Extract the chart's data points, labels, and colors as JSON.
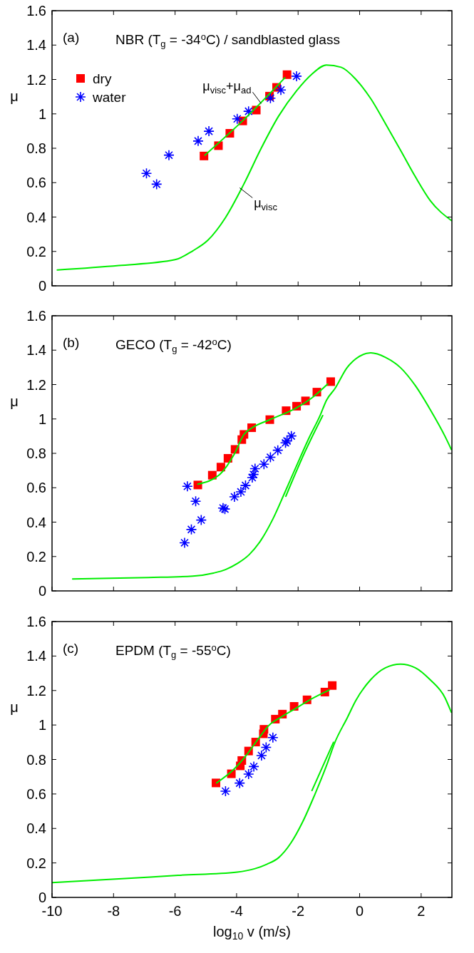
{
  "chart_data": [
    {
      "type": "scatter",
      "title": "NBR (T$_{g}$ = -34$^{o}$C) / sandblasted glass",
      "ylabel": "μ",
      "xlim": [
        -10,
        3
      ],
      "xticks": [
        -10,
        -8,
        -6,
        -4,
        -2,
        0,
        2
      ],
      "ylim": [
        0,
        1.6
      ],
      "yticks": [
        0,
        0.2,
        0.4,
        0.6,
        0.8,
        1,
        1.2,
        1.4,
        1.6
      ],
      "tick_labels": "y",
      "legend": "top left",
      "grid": false,
      "annotations": [
        "(a)",
        {
          "text": "μ$_{visc}$+μ$_{ad}$",
          "x": -3.2,
          "y": 1.06
        },
        {
          "text": "μ$_{visc}$",
          "x": -3.9,
          "y": 0.57
        }
      ],
      "series": [
        {
          "name": "dry",
          "color": "#ff0000",
          "marker": "square",
          "x": [
            -5.06,
            -4.59,
            -4.22,
            -3.8,
            -3.36,
            -2.93,
            -2.7,
            -2.36
          ],
          "values": [
            0.755,
            0.815,
            0.887,
            0.959,
            1.022,
            1.103,
            1.154,
            1.228
          ]
        },
        {
          "name": "water",
          "color": "#0000ff",
          "marker": "cross",
          "x": [
            -6.93,
            -6.6,
            -6.2,
            -5.25,
            -4.9,
            -3.98,
            -3.61,
            -2.9,
            -2.56,
            -2.05
          ],
          "values": [
            0.654,
            0.591,
            0.76,
            0.842,
            0.899,
            0.971,
            1.015,
            1.091,
            1.139,
            1.219
          ]
        },
        {
          "type": "line",
          "color": "#00ee00",
          "x": [
            -5.03,
            -3.8,
            -2.43
          ],
          "values": [
            0.76,
            0.96,
            1.21
          ]
        },
        {
          "type": "line",
          "color": "#00ee00",
          "x": [
            -9.83,
            -7.83,
            -6,
            -5.42,
            -4.94,
            -4.36,
            -3.78,
            -3.2,
            -2.63,
            -2.05,
            -1.57,
            -1.08,
            -0.6,
            -0.12,
            0.36,
            0.84,
            1.33,
            1.81,
            2.29,
            2.98
          ],
          "values": [
            0.092,
            0.118,
            0.152,
            0.204,
            0.264,
            0.397,
            0.586,
            0.8,
            0.988,
            1.134,
            1.228,
            1.284,
            1.271,
            1.2,
            1.089,
            0.943,
            0.789,
            0.635,
            0.497,
            0.38
          ]
        }
      ]
    },
    {
      "type": "scatter",
      "title": "GECO (T$_{g}$ = -42$^{o}$C)",
      "ylabel": "μ",
      "xlim": [
        -10,
        3
      ],
      "xticks": [
        -10,
        -8,
        -6,
        -4,
        -2,
        0,
        2
      ],
      "ylim": [
        0,
        1.6
      ],
      "yticks": [
        0,
        0.2,
        0.4,
        0.6,
        0.8,
        1,
        1.2,
        1.4,
        1.6
      ],
      "tick_labels": "y",
      "grid": false,
      "annotations": [
        "(b)"
      ],
      "series": [
        {
          "color": "#ff0000",
          "marker": "square",
          "x": [
            -5.26,
            -4.79,
            -4.51,
            -4.28,
            -4.05,
            -3.83,
            -3.76,
            -3.51,
            -2.92,
            -2.39,
            -2.05,
            -1.76,
            -1.39,
            -0.94
          ],
          "values": [
            0.616,
            0.673,
            0.72,
            0.771,
            0.823,
            0.88,
            0.91,
            0.949,
            0.996,
            1.048,
            1.074,
            1.105,
            1.156,
            1.217
          ]
        },
        {
          "color": "#0000ff",
          "marker": "cross",
          "x": [
            -5.69,
            -5.6,
            -5.47,
            -5.33,
            -5.15,
            -4.44,
            -4.38,
            -4.07,
            -3.86,
            -3.71,
            -3.49,
            -3.45,
            -3.4,
            -3.11,
            -2.9,
            -2.66,
            -2.41,
            -2.36,
            -2.22
          ],
          "values": [
            0.28,
            0.608,
            0.357,
            0.521,
            0.412,
            0.482,
            0.476,
            0.547,
            0.576,
            0.613,
            0.659,
            0.677,
            0.711,
            0.737,
            0.777,
            0.818,
            0.861,
            0.872,
            0.901
          ]
        },
        {
          "type": "line",
          "color": "#00ee00",
          "x": [
            -5.26,
            -4.55,
            -4.07,
            -3.76,
            -3.49,
            -2.92,
            -2.05,
            -1.47,
            -1.04
          ],
          "values": [
            0.621,
            0.677,
            0.797,
            0.91,
            0.949,
            0.996,
            1.065,
            1.134,
            1.203
          ]
        },
        {
          "type": "line",
          "color": "#00ee00",
          "x": [
            -9.33,
            -6.87,
            -5.42,
            -4.75,
            -4.36,
            -3.98,
            -3.59,
            -3.2,
            -2.82,
            -2.43,
            -2.05,
            -1.66,
            -1.28,
            -1.08,
            -0.8,
            -0.41,
            -0.12,
            0.36,
            0.84,
            1.33,
            1.81,
            2.29,
            2.77,
            2.98
          ],
          "values": [
            0.069,
            0.078,
            0.086,
            0.104,
            0.124,
            0.159,
            0.211,
            0.297,
            0.418,
            0.573,
            0.728,
            0.884,
            1.022,
            1.108,
            1.177,
            1.298,
            1.35,
            1.384,
            1.358,
            1.298,
            1.194,
            1.056,
            0.901,
            0.823
          ]
        },
        {
          "type": "line",
          "color": "#00ee00",
          "x": [
            -2.4,
            -1.8,
            -1.2
          ],
          "values": [
            0.55,
            0.8,
            1.02
          ]
        }
      ]
    },
    {
      "type": "scatter",
      "title": "EPDM (T$_{g}$ = -55$^{o}$C)",
      "xlabel": "log$_{10}$ v  (m/s)",
      "ylabel": "μ",
      "xlim": [
        -10,
        3
      ],
      "xticks": [
        -10,
        -8,
        -6,
        -4,
        -2,
        0,
        2
      ],
      "ylim": [
        0,
        1.6
      ],
      "yticks": [
        0,
        0.2,
        0.4,
        0.6,
        0.8,
        1,
        1.2,
        1.4,
        1.6
      ],
      "grid": false,
      "annotations": [
        "(c)"
      ],
      "series": [
        {
          "color": "#ff0000",
          "marker": "square",
          "x": [
            -4.67,
            -4.17,
            -3.88,
            -3.83,
            -3.61,
            -3.38,
            -3.13,
            -3.11,
            -2.74,
            -2.51,
            -2.13,
            -1.71,
            -1.13,
            -0.89
          ],
          "values": [
            0.664,
            0.717,
            0.763,
            0.794,
            0.849,
            0.901,
            0.949,
            0.975,
            1.034,
            1.063,
            1.108,
            1.146,
            1.191,
            1.229
          ]
        },
        {
          "color": "#0000ff",
          "marker": "cross",
          "x": [
            -4.36,
            -3.9,
            -3.61,
            -3.44,
            -3.19,
            -3.04,
            -2.82
          ],
          "values": [
            0.616,
            0.663,
            0.715,
            0.759,
            0.823,
            0.87,
            0.927
          ]
        },
        {
          "type": "line",
          "color": "#00ee00",
          "x": [
            -4.65,
            -4.07,
            -3.69,
            -3.3,
            -2.96,
            -2.53,
            -2.05,
            -1.57,
            -0.99
          ],
          "values": [
            0.664,
            0.746,
            0.823,
            0.918,
            0.996,
            1.048,
            1.099,
            1.151,
            1.203
          ]
        },
        {
          "type": "line",
          "color": "#00ee00",
          "x": [
            -10,
            -7.83,
            -5.9,
            -3.98,
            -3.4,
            -3.01,
            -2.63,
            -2.24,
            -1.86,
            -1.47,
            -1.08,
            -0.8,
            -0.41,
            -0.12,
            0.36,
            0.84,
            1.33,
            1.81,
            2.29,
            2.77,
            2.98
          ],
          "values": [
            0.086,
            0.107,
            0.128,
            0.147,
            0.167,
            0.193,
            0.231,
            0.314,
            0.435,
            0.591,
            0.763,
            0.901,
            1.039,
            1.143,
            1.263,
            1.332,
            1.353,
            1.332,
            1.263,
            1.16,
            1.074
          ]
        },
        {
          "type": "line",
          "color": "#00ee00",
          "x": [
            -1.55,
            -0.85
          ],
          "values": [
            0.62,
            0.9
          ]
        }
      ]
    }
  ]
}
